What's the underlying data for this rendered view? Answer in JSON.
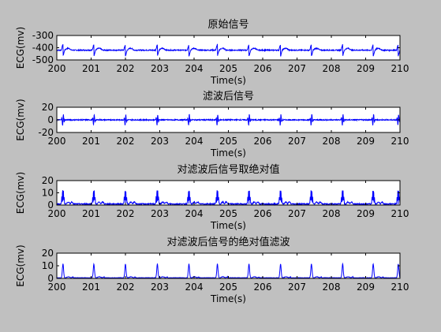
{
  "window": {
    "background": "#c0c0c0",
    "axes_background": "#ffffff",
    "line_color": "#0000ff"
  },
  "chart_data": [
    {
      "type": "line",
      "title": "原始信号",
      "xlabel": "Time(s)",
      "ylabel": "ECG(mv)",
      "xlim": [
        200,
        210
      ],
      "ylim": [
        -500,
        -300
      ],
      "xticks": [
        "200",
        "201",
        "202",
        "203",
        "204",
        "205",
        "206",
        "207",
        "208",
        "209",
        "210"
      ],
      "yticks": [
        "-300",
        "-400",
        "-500"
      ],
      "grid": false,
      "signal": {
        "baseline": -420,
        "amplitude_peak": -370,
        "amplitude_trough": -470,
        "beat_times": [
          200.18,
          201.08,
          202.0,
          202.93,
          203.85,
          204.68,
          205.6,
          206.52,
          207.42,
          208.33,
          209.22,
          209.95
        ]
      }
    },
    {
      "type": "line",
      "title": "滤波后信号",
      "xlabel": "Time(s)",
      "ylabel": "ECG(mv)",
      "xlim": [
        200,
        210
      ],
      "ylim": [
        -20,
        20
      ],
      "xticks": [
        "200",
        "201",
        "202",
        "203",
        "204",
        "205",
        "206",
        "207",
        "208",
        "209",
        "210"
      ],
      "yticks": [
        "20",
        "0",
        "-20"
      ],
      "grid": false,
      "signal": {
        "baseline": 0,
        "amplitude_peak": 8,
        "amplitude_trough": -8,
        "beat_times": [
          200.18,
          201.08,
          202.0,
          202.93,
          203.85,
          204.68,
          205.6,
          206.52,
          207.42,
          208.33,
          209.22,
          209.95
        ]
      }
    },
    {
      "type": "line",
      "title": "对滤波后信号取绝对值",
      "xlabel": "Time(s)",
      "ylabel": "ECG(mv)",
      "xlim": [
        200,
        210
      ],
      "ylim": [
        0,
        20
      ],
      "xticks": [
        "200",
        "201",
        "202",
        "203",
        "204",
        "205",
        "206",
        "207",
        "208",
        "209",
        "210"
      ],
      "yticks": [
        "20",
        "10",
        "0"
      ],
      "grid": false,
      "signal": {
        "baseline": 0.5,
        "amplitude_peak": 14,
        "beat_times": [
          200.18,
          201.08,
          202.0,
          202.93,
          203.85,
          204.68,
          205.6,
          206.52,
          207.42,
          208.33,
          209.22,
          209.95
        ]
      }
    },
    {
      "type": "line",
      "title": "对滤波后信号的绝对值滤波",
      "xlabel": "Time(s)",
      "ylabel": "ECG(mv)",
      "xlim": [
        200,
        210
      ],
      "ylim": [
        0,
        20
      ],
      "xticks": [
        "200",
        "201",
        "202",
        "203",
        "204",
        "205",
        "206",
        "207",
        "208",
        "209",
        "210"
      ],
      "yticks": [
        "20",
        "10",
        "0"
      ],
      "grid": false,
      "signal": {
        "baseline": 0.3,
        "amplitude_peak": 11,
        "beat_times": [
          200.18,
          201.08,
          202.0,
          202.93,
          203.85,
          204.68,
          205.6,
          206.52,
          207.42,
          208.33,
          209.22,
          209.95
        ]
      }
    }
  ]
}
